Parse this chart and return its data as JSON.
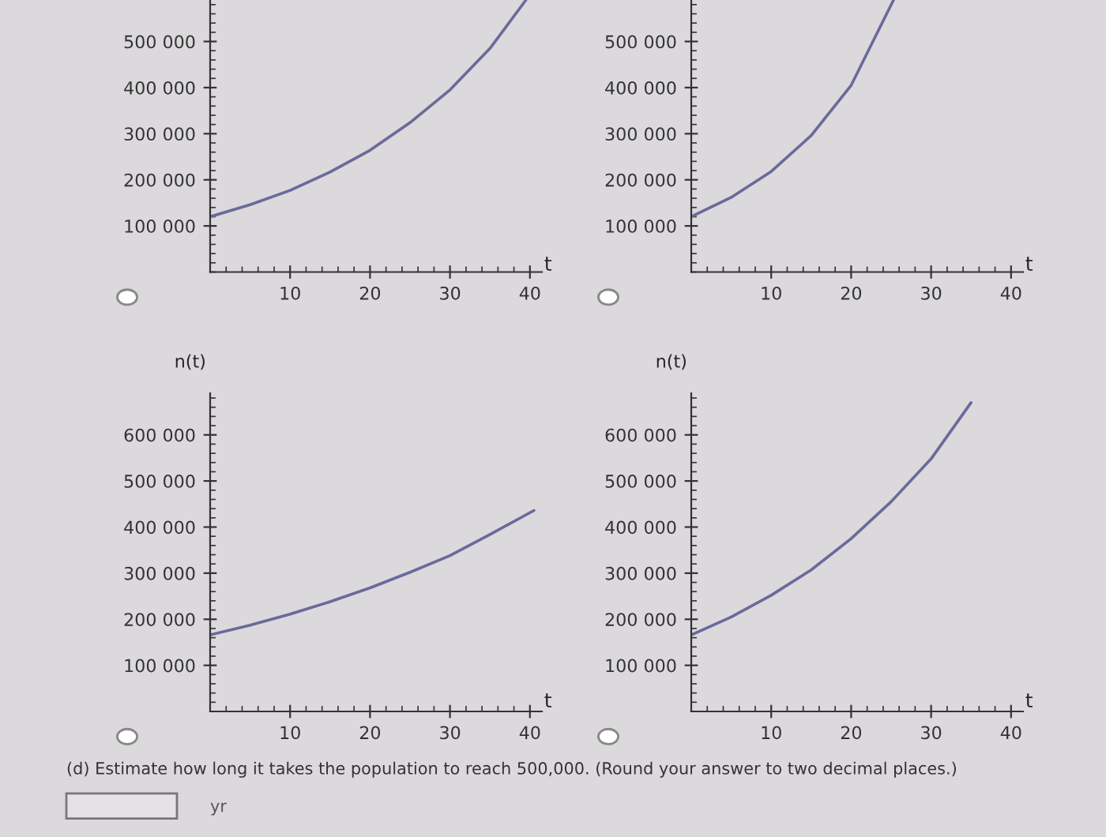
{
  "chart_data": [
    {
      "type": "line",
      "xlabel": "t",
      "xlim": [
        0,
        41.5
      ],
      "xticks": [
        10,
        20,
        30,
        40
      ],
      "ylim": [
        0,
        590000
      ],
      "yticks": [
        {
          "value": 100000,
          "label": "100 000"
        },
        {
          "value": 200000,
          "label": "200 000"
        },
        {
          "value": 300000,
          "label": "300 000"
        },
        {
          "value": 400000,
          "label": "400 000"
        },
        {
          "value": 500000,
          "label": "500 000"
        }
      ],
      "grid": false,
      "legend": false,
      "series": [
        {
          "color": "#6a6a9a",
          "x": [
            0,
            5,
            10,
            15,
            20,
            25,
            30,
            35,
            39.5
          ],
          "values": [
            120000,
            146000,
            177000,
            217000,
            264000,
            324000,
            395000,
            485000,
            590000
          ]
        }
      ]
    },
    {
      "type": "line",
      "xlabel": "t",
      "xlim": [
        0,
        41.5
      ],
      "xticks": [
        10,
        20,
        30,
        40
      ],
      "ylim": [
        0,
        590000
      ],
      "yticks": [
        {
          "value": 100000,
          "label": "100 000"
        },
        {
          "value": 200000,
          "label": "200 000"
        },
        {
          "value": 300000,
          "label": "300 000"
        },
        {
          "value": 400000,
          "label": "400 000"
        },
        {
          "value": 500000,
          "label": "500 000"
        }
      ],
      "grid": false,
      "legend": false,
      "series": [
        {
          "color": "#6a6a9a",
          "x": [
            0,
            5,
            10,
            15,
            20,
            25.3
          ],
          "values": [
            120000,
            162000,
            218000,
            296000,
            405000,
            590000
          ]
        }
      ]
    },
    {
      "type": "line",
      "xlabel": "t",
      "ylabel": "n(t)",
      "xlim": [
        0,
        41.5
      ],
      "xticks": [
        10,
        20,
        30,
        40
      ],
      "ylim": [
        0,
        690000
      ],
      "yticks": [
        {
          "value": 100000,
          "label": "100 000"
        },
        {
          "value": 200000,
          "label": "200 000"
        },
        {
          "value": 300000,
          "label": "300 000"
        },
        {
          "value": 400000,
          "label": "400 000"
        },
        {
          "value": 500000,
          "label": "500 000"
        },
        {
          "value": 600000,
          "label": "600 000"
        }
      ],
      "grid": false,
      "legend": false,
      "series": [
        {
          "color": "#6a6a9a",
          "x": [
            0,
            5,
            10,
            15,
            20,
            25,
            30,
            35,
            40.5
          ],
          "values": [
            166000,
            187000,
            211000,
            238000,
            268000,
            302000,
            338000,
            384000,
            436000
          ]
        }
      ]
    },
    {
      "type": "line",
      "xlabel": "t",
      "ylabel": "n(t)",
      "xlim": [
        0,
        41.5
      ],
      "xticks": [
        10,
        20,
        30,
        40
      ],
      "ylim": [
        0,
        690000
      ],
      "yticks": [
        {
          "value": 100000,
          "label": "100 000"
        },
        {
          "value": 200000,
          "label": "200 000"
        },
        {
          "value": 300000,
          "label": "300 000"
        },
        {
          "value": 400000,
          "label": "400 000"
        },
        {
          "value": 500000,
          "label": "500 000"
        },
        {
          "value": 600000,
          "label": "600 000"
        }
      ],
      "grid": false,
      "legend": false,
      "annotations": [
        "(d) Estimate how long it takes the population to reach 500,000. (Round your answer to two decimal places.)",
        "yr"
      ],
      "series": [
        {
          "color": "#6a6a9a",
          "x": [
            0,
            5,
            10,
            15,
            20,
            25,
            30,
            35
          ],
          "values": [
            166000,
            205000,
            252000,
            307000,
            375000,
            455000,
            548000,
            670000
          ]
        }
      ]
    }
  ]
}
